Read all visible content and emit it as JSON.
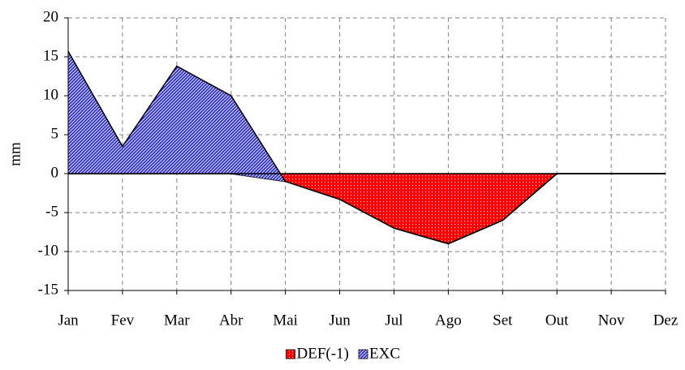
{
  "chart_data": {
    "type": "stacked_area",
    "y_label": "mm",
    "categories": [
      "Jan",
      "Fev",
      "Mar",
      "Abr",
      "Mai",
      "Jun",
      "Jul",
      "Ago",
      "Set",
      "Out",
      "Nov",
      "Dez"
    ],
    "series": [
      {
        "name": "DEF(-1)",
        "color": "#ff0000",
        "values": [
          0,
          0,
          0,
          0,
          -1,
          -3.3,
          -7,
          -9,
          -6,
          0,
          0,
          0
        ]
      },
      {
        "name": "EXC",
        "color": "#3333cc",
        "values": [
          15.7,
          3.5,
          13.8,
          10,
          0,
          0,
          0,
          0,
          0,
          0,
          0,
          0
        ]
      }
    ],
    "ylim": [
      -15,
      20
    ],
    "yticks": [
      -15,
      -10,
      -5,
      0,
      5,
      10,
      15,
      20
    ],
    "grid": true,
    "legend": "bottom"
  }
}
